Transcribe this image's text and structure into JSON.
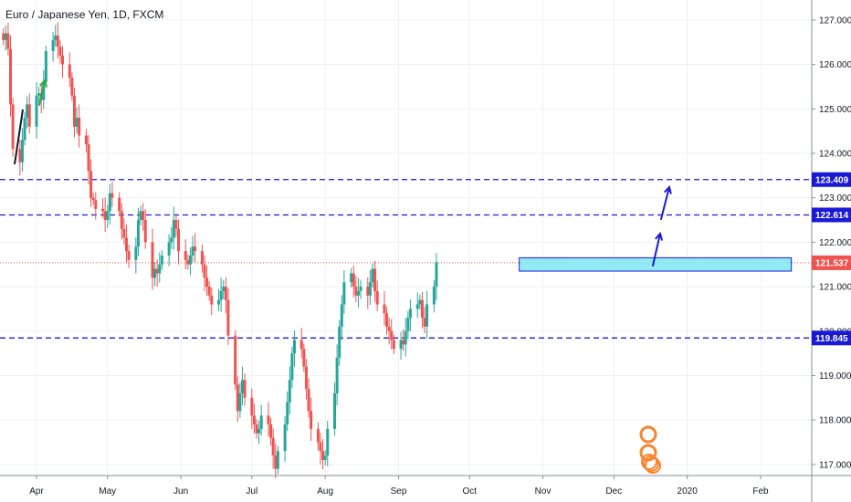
{
  "chart_data": {
    "type": "candlestick",
    "title": "Euro / Japanese Yen, 1D, FXCM",
    "xlabel": "",
    "ylabel": "",
    "ylim": [
      116.75,
      127.45
    ],
    "yticks": [
      "127.000",
      "126.000",
      "125.000",
      "124.000",
      "123.000",
      "122.000",
      "121.000",
      "120.000",
      "119.000",
      "118.000",
      "117.000"
    ],
    "xtick_labels": [
      "Apr",
      "May",
      "Jun",
      "Jul",
      "Aug",
      "Sep",
      "Oct",
      "Nov",
      "Dec",
      "2020",
      "Feb"
    ],
    "grid": true,
    "colors": {
      "up": "#26a69a",
      "down": "#ef5350",
      "level": "#1a1ad6",
      "last": "#ef5350",
      "zone": "#7fe8f2",
      "zone_border": "#1a1ad6",
      "arrow_green": "#2fa84f",
      "arrow_blue": "#1a1ad6"
    },
    "levels": [
      {
        "price": 123.409,
        "label": "123.409"
      },
      {
        "price": 122.614,
        "label": "122.614"
      },
      {
        "price": 119.845,
        "label": "119.845"
      }
    ],
    "last_price": {
      "price": 121.537,
      "label": "121.537"
    },
    "zone": {
      "from_date": "2019-10-22",
      "to_date": "2020-02-14",
      "low": 121.35,
      "high": 121.65
    },
    "candles_start": "2019-03-18",
    "closes": [
      126.55,
      126.7,
      126.35,
      125.1,
      124.1,
      123.8,
      124.3,
      124.8,
      125.1,
      124.6,
      125.3,
      125.35,
      125.2,
      125.6,
      126.3,
      126.55,
      126.65,
      126.4,
      126.2,
      126.0,
      125.7,
      125.3,
      124.6,
      124.8,
      124.4,
      124.2,
      123.6,
      123.0,
      122.95,
      122.75,
      122.7,
      122.5,
      122.7,
      123.1,
      123.0,
      122.7,
      122.3,
      122.1,
      121.8,
      121.6,
      121.9,
      122.5,
      122.7,
      122.5,
      122.0,
      121.2,
      121.4,
      121.3,
      121.5,
      121.7,
      122.0,
      122.1,
      122.5,
      122.3,
      121.8,
      121.6,
      121.5,
      121.7,
      121.9,
      121.8,
      121.5,
      121.2,
      121.0,
      120.8,
      120.6,
      120.7,
      120.9,
      121.0,
      120.7,
      119.9,
      118.8,
      118.2,
      118.6,
      118.9,
      118.5,
      118.1,
      117.9,
      117.7,
      117.8,
      118.1,
      117.9,
      117.6,
      117.2,
      116.9,
      117.3,
      117.9,
      118.4,
      118.9,
      119.5,
      119.8,
      119.6,
      119.2,
      118.7,
      118.2,
      117.8,
      117.5,
      117.3,
      117.1,
      117.2,
      117.8,
      118.6,
      119.4,
      120.1,
      120.6,
      121.1,
      121.3,
      121.0,
      120.8,
      120.9,
      121.0,
      120.8,
      121.1,
      121.4,
      120.9,
      120.6,
      120.4,
      120.1,
      120.0,
      119.8,
      119.6,
      119.8,
      119.7,
      120.0,
      120.3,
      120.5,
      120.6,
      120.7,
      120.3,
      120.1,
      120.6,
      121.0,
      121.55
    ]
  }
}
